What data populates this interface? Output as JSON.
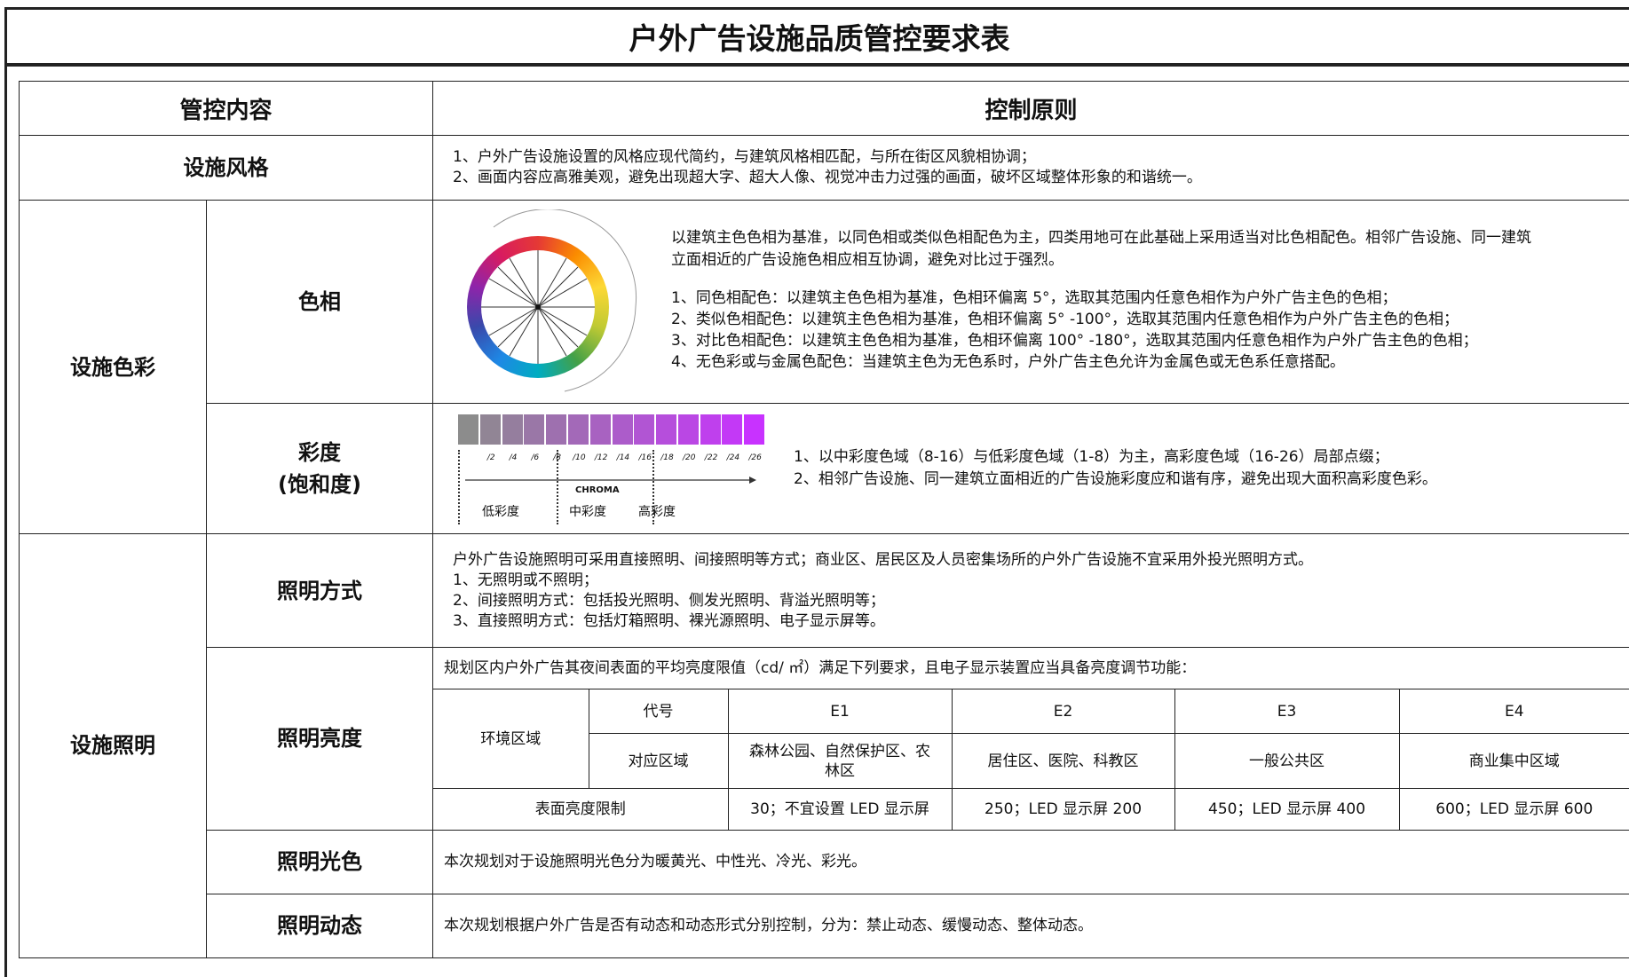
{
  "header": {
    "title": "户外广告设施品质管控要求表"
  },
  "table": {
    "headers": [
      "管控内容",
      "控制原则"
    ],
    "style": {
      "label": "设施风格",
      "lines": [
        "1、户外广告设施设置的风格应现代简约，与建筑风格相匹配，与所在街区风貌相协调；",
        "2、画面内容应高雅美观，避免出现超大字、超大人像、视觉冲击力过强的画面，破坏区域整体形象的和谐统一。"
      ]
    },
    "color": {
      "label": "设施色彩",
      "hue": {
        "label": "色相",
        "intro": [
          "以建筑主色色相为基准，以同色相或类似色相配色为主，四类用地可在此基础上采用适当对比色相配色。相邻广告设施、同一建筑",
          "立面相近的广告设施色相应相互协调，避免对比过于强烈。"
        ],
        "lines": [
          "1、同色相配色：以建筑主色色相为基准，色相环偏离 5°，选取其范围内任意色相作为户外广告主色的色相；",
          "2、类似色相配色：以建筑主色色相为基准，色相环偏离 5° -100°，选取其范围内任意色相作为户外广告主色的色相；",
          "3、对比色相配色：以建筑主色色相为基准，色相环偏离 100° -180°，选取其范围内任意色相作为户外广告主色的色相；",
          "4、无色彩或与金属色配色：当建筑主色为无色系时，户外广告主色允许为金属色或无色系任意搭配。"
        ]
      },
      "chroma": {
        "label": [
          "彩度",
          "(饱和度)"
        ],
        "scale_ticks": [
          "/2",
          "/4",
          "/6",
          "/8",
          "/10",
          "/12",
          "/14",
          "/16",
          "/18",
          "/20",
          "/22",
          "/24",
          "/26"
        ],
        "axis_label": "CHROMA",
        "ranges": [
          "低彩度",
          "中彩度",
          "高彩度"
        ],
        "lines": [
          "1、以中彩度色域（8-16）与低彩度色域（1-8）为主，高彩度色域（16-26）局部点缀；",
          "2、相邻广告设施、同一建筑立面相近的广告设施彩度应和谐有序，避免出现大面积高彩度色彩。"
        ]
      }
    },
    "lighting": {
      "label": "设施照明",
      "mode": {
        "label": "照明方式",
        "lines": [
          "户外广告设施照明可采用直接照明、间接照明等方式；商业区、居民区及人员密集场所的户外广告设施不宜采用外投光照明方式。",
          "1、无照明或不照明；",
          "2、间接照明方式：包括投光照明、侧发光照明、背溢光照明等；",
          "3、直接照明方式：包括灯箱照明、裸光源照明、电子显示屏等。"
        ]
      },
      "brightness": {
        "label": "照明亮度",
        "intro": "规划区内户外广告其夜间表面的平均亮度限值（cd/ ㎡）满足下列要求，且电子显示装置应当具备亮度调节功能：",
        "table": {
          "zone": "环境区域",
          "code": "代号",
          "area": "对应区域",
          "limit": "表面亮度限制",
          "codes": [
            "E1",
            "E2",
            "E3",
            "E4"
          ],
          "areas": [
            "森林公园、自然保护区、农林区",
            "居住区、医院、科教区",
            "一般公共区",
            "商业集中区域"
          ],
          "limits": [
            "30；不宜设置 LED 显示屏",
            "250；LED 显示屏 200",
            "450；LED 显示屏 400",
            "600；LED 显示屏 600"
          ]
        }
      },
      "light_color": {
        "label": "照明光色",
        "text": "本次规划对于设施照明光色分为暖黄光、中性光、冷光、彩光。"
      },
      "dynamics": {
        "label": "照明动态",
        "text": "本次规划根据户外广告是否有动态和动态形式分别控制，分为：禁止动态、缓慢动态、整体动态。"
      }
    }
  }
}
